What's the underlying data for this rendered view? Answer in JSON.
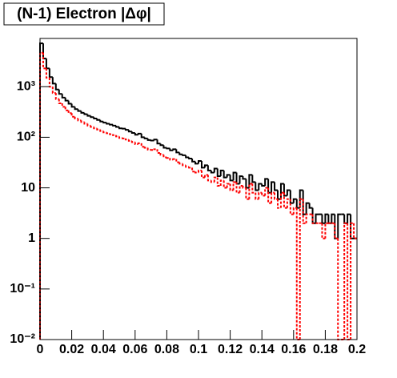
{
  "chart_data": {
    "type": "histogram",
    "title": "(N-1) Electron |Δφ|",
    "log_y": true,
    "xlim": [
      0,
      0.2
    ],
    "ylim": [
      0.01,
      9000
    ],
    "xticks": [
      0,
      0.02,
      0.04,
      0.06,
      0.08,
      0.1,
      0.12,
      0.14,
      0.16,
      0.18,
      0.2
    ],
    "yticks": [
      {
        "value": 0.01,
        "label": "10⁻²"
      },
      {
        "value": 0.1,
        "label": "10⁻¹"
      },
      1,
      10,
      {
        "value": 100,
        "label": "10²"
      },
      {
        "value": 1000,
        "label": "10³"
      }
    ],
    "bins": [
      0,
      0.002,
      0.004,
      0.006,
      0.008,
      0.01,
      0.012,
      0.014,
      0.016,
      0.018,
      0.02,
      0.022,
      0.024,
      0.026,
      0.028,
      0.03,
      0.032,
      0.034,
      0.036,
      0.038,
      0.04,
      0.042,
      0.044,
      0.046,
      0.048,
      0.05,
      0.052,
      0.054,
      0.056,
      0.058,
      0.06,
      0.062,
      0.064,
      0.066,
      0.068,
      0.07,
      0.072,
      0.074,
      0.076,
      0.078,
      0.08,
      0.082,
      0.084,
      0.086,
      0.088,
      0.09,
      0.092,
      0.094,
      0.096,
      0.098,
      0.1,
      0.102,
      0.104,
      0.106,
      0.108,
      0.11,
      0.112,
      0.114,
      0.116,
      0.118,
      0.12,
      0.122,
      0.124,
      0.126,
      0.128,
      0.13,
      0.132,
      0.134,
      0.136,
      0.138,
      0.14,
      0.142,
      0.144,
      0.146,
      0.148,
      0.15,
      0.152,
      0.154,
      0.156,
      0.158,
      0.16,
      0.162,
      0.164,
      0.166,
      0.168,
      0.17,
      0.172,
      0.174,
      0.176,
      0.178,
      0.18,
      0.182,
      0.184,
      0.186,
      0.188,
      0.19,
      0.192,
      0.194,
      0.196,
      0.198,
      0.2
    ],
    "series": [
      {
        "color": "#000000",
        "dashed": false,
        "values": [
          7200,
          3600,
          2300,
          1550,
          1150,
          880,
          720,
          610,
          530,
          460,
          400,
          360,
          330,
          305,
          285,
          265,
          250,
          235,
          220,
          205,
          195,
          185,
          178,
          170,
          160,
          150,
          148,
          140,
          130,
          122,
          112,
          118,
          100,
          95,
          88,
          86,
          90,
          75,
          70,
          62,
          60,
          55,
          58,
          50,
          46,
          44,
          40,
          38,
          33,
          30,
          34,
          25,
          28,
          22,
          20,
          24,
          17,
          22,
          16,
          18,
          14,
          20,
          12,
          17,
          15,
          10,
          18,
          13,
          9,
          12,
          11,
          15,
          8,
          13,
          9,
          6,
          12,
          7,
          9,
          5,
          6,
          4,
          9,
          3,
          5,
          4,
          2,
          3,
          3,
          2,
          3,
          2,
          3,
          1,
          3,
          3,
          2,
          3,
          1,
          1
        ]
      },
      {
        "color": "#ff0000",
        "dashed": true,
        "values": [
          4700,
          2300,
          1500,
          1000,
          750,
          570,
          470,
          400,
          340,
          300,
          255,
          235,
          215,
          200,
          185,
          170,
          160,
          150,
          142,
          133,
          125,
          120,
          115,
          110,
          104,
          97,
          95,
          90,
          85,
          80,
          73,
          76,
          65,
          62,
          57,
          56,
          58,
          49,
          45,
          40,
          39,
          36,
          37,
          32,
          30,
          28,
          26,
          25,
          21,
          20,
          22,
          16,
          18,
          14,
          13,
          16,
          11,
          14,
          10,
          12,
          9,
          13,
          8,
          11,
          10,
          6,
          12,
          8,
          6,
          8,
          7,
          10,
          5,
          8,
          6,
          4,
          8,
          4,
          6,
          3,
          4,
          0,
          6,
          2,
          3,
          3,
          2,
          2,
          2,
          1,
          2,
          2,
          2,
          1,
          0,
          0,
          2,
          0,
          2,
          1
        ]
      }
    ]
  }
}
